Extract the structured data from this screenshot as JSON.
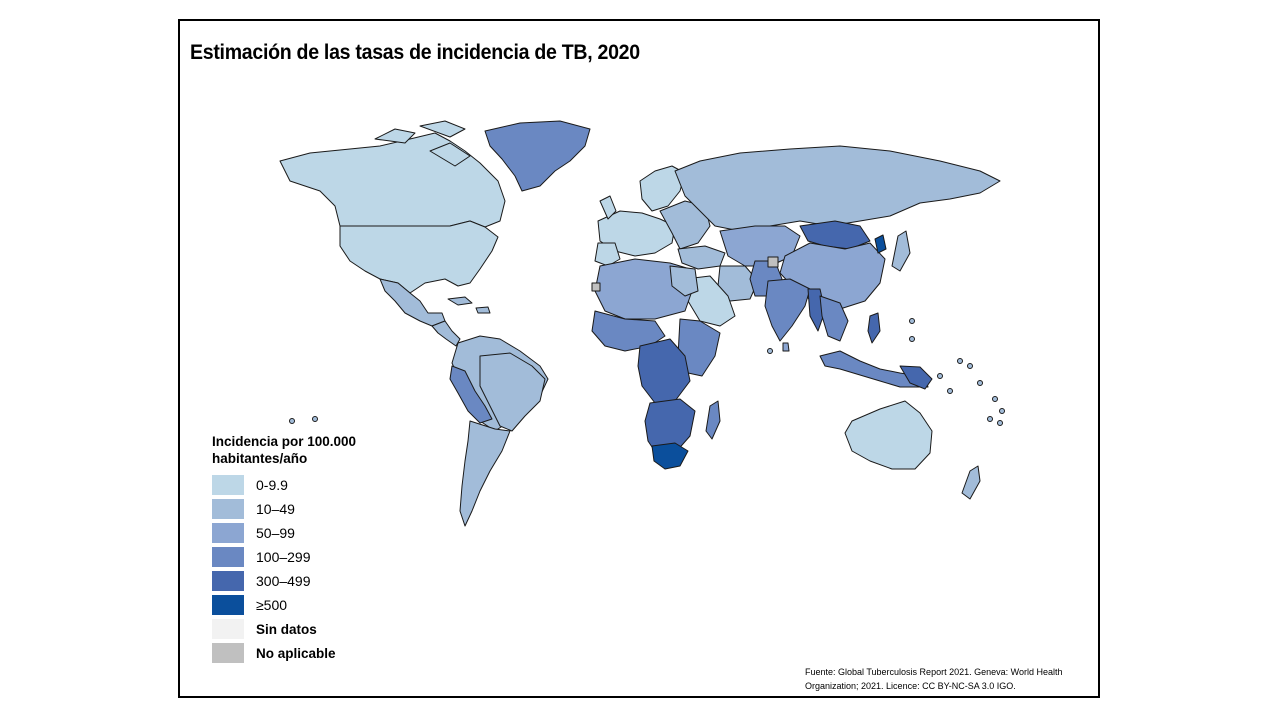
{
  "title": "Estimación de las tasas de incidencia de TB, 2020",
  "legend": {
    "title_line1": "Incidencia por 100.000",
    "title_line2": "habitantes/año",
    "items": [
      {
        "label": "0-9.9",
        "color": "#bdd7e7"
      },
      {
        "label": "10–49",
        "color": "#a2bcd9"
      },
      {
        "label": "50–99",
        "color": "#8ca6d2"
      },
      {
        "label": "100–299",
        "color": "#6a88c2"
      },
      {
        "label": "300–499",
        "color": "#4567ad"
      },
      {
        "label": "≥500",
        "color": "#0b4f9c"
      },
      {
        "label": "Sin datos",
        "color": "#f2f2f2"
      },
      {
        "label": "No aplicable",
        "color": "#c0c0c0"
      }
    ]
  },
  "source": {
    "line1": "Fuente:  Global Tuberculosis Report 2021. Geneva: World Health",
    "line2": "Organization; 2021. Licence: CC BY-NC-SA 3.0 IGO."
  }
}
